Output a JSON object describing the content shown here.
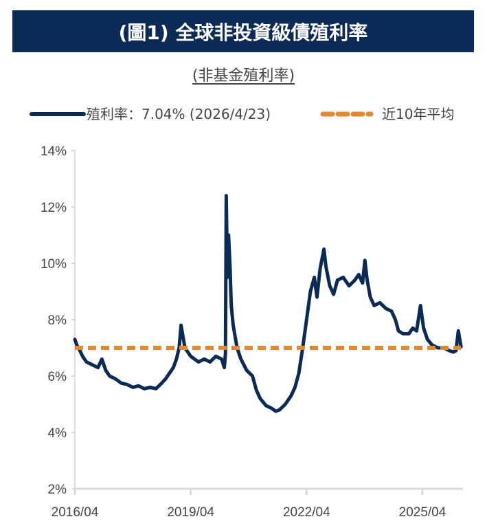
{
  "title": "(圖1) 全球非投資級債殖利率",
  "subtitle": "(非基金殖利率)",
  "colors": {
    "banner": "#0b2a55",
    "series": "#0b2a55",
    "average": "#e08a30"
  },
  "chart_data": {
    "type": "line",
    "title": "(圖1) 全球非投資級債殖利率",
    "subtitle": "(非基金殖利率)",
    "legend": [
      "殖利率：7.04% (2026/4/23)",
      "近10年平均"
    ],
    "legend_placement": "top",
    "ylim": [
      2,
      14
    ],
    "yticks": [
      "2%",
      "4%",
      "6%",
      "8%",
      "10%",
      "12%",
      "14%"
    ],
    "ytick_values": [
      2,
      4,
      6,
      8,
      10,
      12,
      14
    ],
    "xlim": [
      2016.25,
      2026.3
    ],
    "xticks": [
      "2016/04",
      "2019/04",
      "2022/04",
      "2025/04"
    ],
    "xtick_values": [
      2016.25,
      2019.25,
      2022.25,
      2025.25
    ],
    "series": [
      {
        "name": "殖利率",
        "x": [
          2016.25,
          2016.3,
          2016.38,
          2016.45,
          2016.55,
          2016.7,
          2016.85,
          2016.95,
          2017.05,
          2017.15,
          2017.3,
          2017.45,
          2017.6,
          2017.75,
          2017.9,
          2018.05,
          2018.2,
          2018.35,
          2018.5,
          2018.6,
          2018.7,
          2018.8,
          2018.88,
          2018.95,
          2019.0,
          2019.1,
          2019.25,
          2019.45,
          2019.6,
          2019.75,
          2019.9,
          2020.05,
          2020.12,
          2020.15,
          2020.17,
          2020.2,
          2020.23,
          2020.27,
          2020.3,
          2020.35,
          2020.45,
          2020.55,
          2020.7,
          2020.85,
          2020.95,
          2021.05,
          2021.2,
          2021.35,
          2021.45,
          2021.55,
          2021.7,
          2021.85,
          2021.95,
          2022.05,
          2022.15,
          2022.25,
          2022.35,
          2022.45,
          2022.52,
          2022.6,
          2022.7,
          2022.75,
          2022.85,
          2022.95,
          2023.05,
          2023.2,
          2023.35,
          2023.5,
          2023.6,
          2023.7,
          2023.76,
          2023.82,
          2023.9,
          2024.0,
          2024.15,
          2024.3,
          2024.45,
          2024.55,
          2024.63,
          2024.75,
          2024.9,
          2025.0,
          2025.1,
          2025.2,
          2025.28,
          2025.38,
          2025.5,
          2025.65,
          2025.8,
          2025.95,
          2026.05,
          2026.12,
          2026.18,
          2026.25
        ],
        "values": [
          7.3,
          7.1,
          6.9,
          6.7,
          6.5,
          6.4,
          6.3,
          6.6,
          6.2,
          6.0,
          5.9,
          5.75,
          5.7,
          5.6,
          5.65,
          5.55,
          5.6,
          5.55,
          5.75,
          5.9,
          6.1,
          6.3,
          6.6,
          7.0,
          7.8,
          7.0,
          6.7,
          6.5,
          6.6,
          6.5,
          6.7,
          6.6,
          6.3,
          6.8,
          12.4,
          9.5,
          11.0,
          9.8,
          8.5,
          7.8,
          7.0,
          6.6,
          6.2,
          6.0,
          5.5,
          5.2,
          4.95,
          4.85,
          4.75,
          4.8,
          5.0,
          5.3,
          5.6,
          6.1,
          7.0,
          8.0,
          9.0,
          9.5,
          8.8,
          9.8,
          10.5,
          9.9,
          9.2,
          8.9,
          9.4,
          9.5,
          9.2,
          9.4,
          9.6,
          9.3,
          10.1,
          9.4,
          8.8,
          8.5,
          8.6,
          8.4,
          8.3,
          8.0,
          7.6,
          7.5,
          7.5,
          7.7,
          7.6,
          8.5,
          7.7,
          7.3,
          7.1,
          7.0,
          7.0,
          6.9,
          6.85,
          6.9,
          7.6,
          7.04
        ]
      },
      {
        "name": "近10年平均",
        "x": [
          2016.25,
          2026.25
        ],
        "values": [
          7.0,
          7.0
        ]
      }
    ]
  }
}
